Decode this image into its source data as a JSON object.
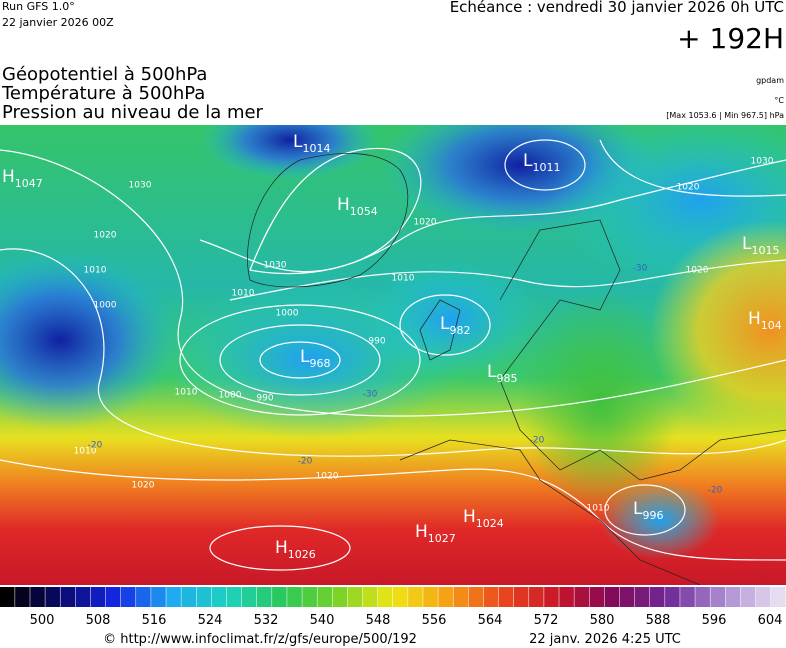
{
  "header": {
    "run": "Run GFS 1.0°",
    "run_date": "22 janvier 2026 00Z",
    "valid": "Echéance : vendredi 30 janvier 2026 0h UTC",
    "lead": "+ 192H"
  },
  "fields": [
    "Géopotentiel à 500hPa",
    "Température à 500hPa",
    "Pression au niveau de la mer"
  ],
  "units": {
    "geopotential": "gpdam",
    "temperature": "°C",
    "pressure": "[Max 1053.6 | Min 967.5] hPa"
  },
  "centers": [
    {
      "type": "L",
      "value": 1014
    },
    {
      "type": "H",
      "value": 1047
    },
    {
      "type": "L",
      "value": 1011
    },
    {
      "type": "H",
      "value": 1054
    },
    {
      "type": "L",
      "value": 1015
    },
    {
      "type": "L",
      "value": 982
    },
    {
      "type": "L",
      "value": 968
    },
    {
      "type": "L",
      "value": 985
    },
    {
      "type": "H",
      "value": 104
    },
    {
      "type": "L",
      "value": 996
    },
    {
      "type": "H",
      "value": 1024
    },
    {
      "type": "H",
      "value": 1027
    },
    {
      "type": "H",
      "value": 1026
    }
  ],
  "isobar_labels": [
    1030,
    1020,
    1010,
    1000,
    1010,
    1000,
    990,
    1000,
    990,
    1010,
    1010,
    1020,
    1020,
    1020,
    1020,
    1030,
    1020,
    1030,
    1010,
    1010
  ],
  "temperature_labels": [
    -30,
    -20,
    -20,
    -20,
    -20,
    -30
  ],
  "colorbar": {
    "ticks": [
      500,
      508,
      516,
      524,
      532,
      540,
      548,
      556,
      564,
      572,
      580,
      588,
      596,
      604
    ]
  },
  "footer": {
    "source": "© http://www.infoclimat.fr/z/gfs/europe/500/192",
    "generated": "22 janv. 2026  4:25 UTC"
  }
}
